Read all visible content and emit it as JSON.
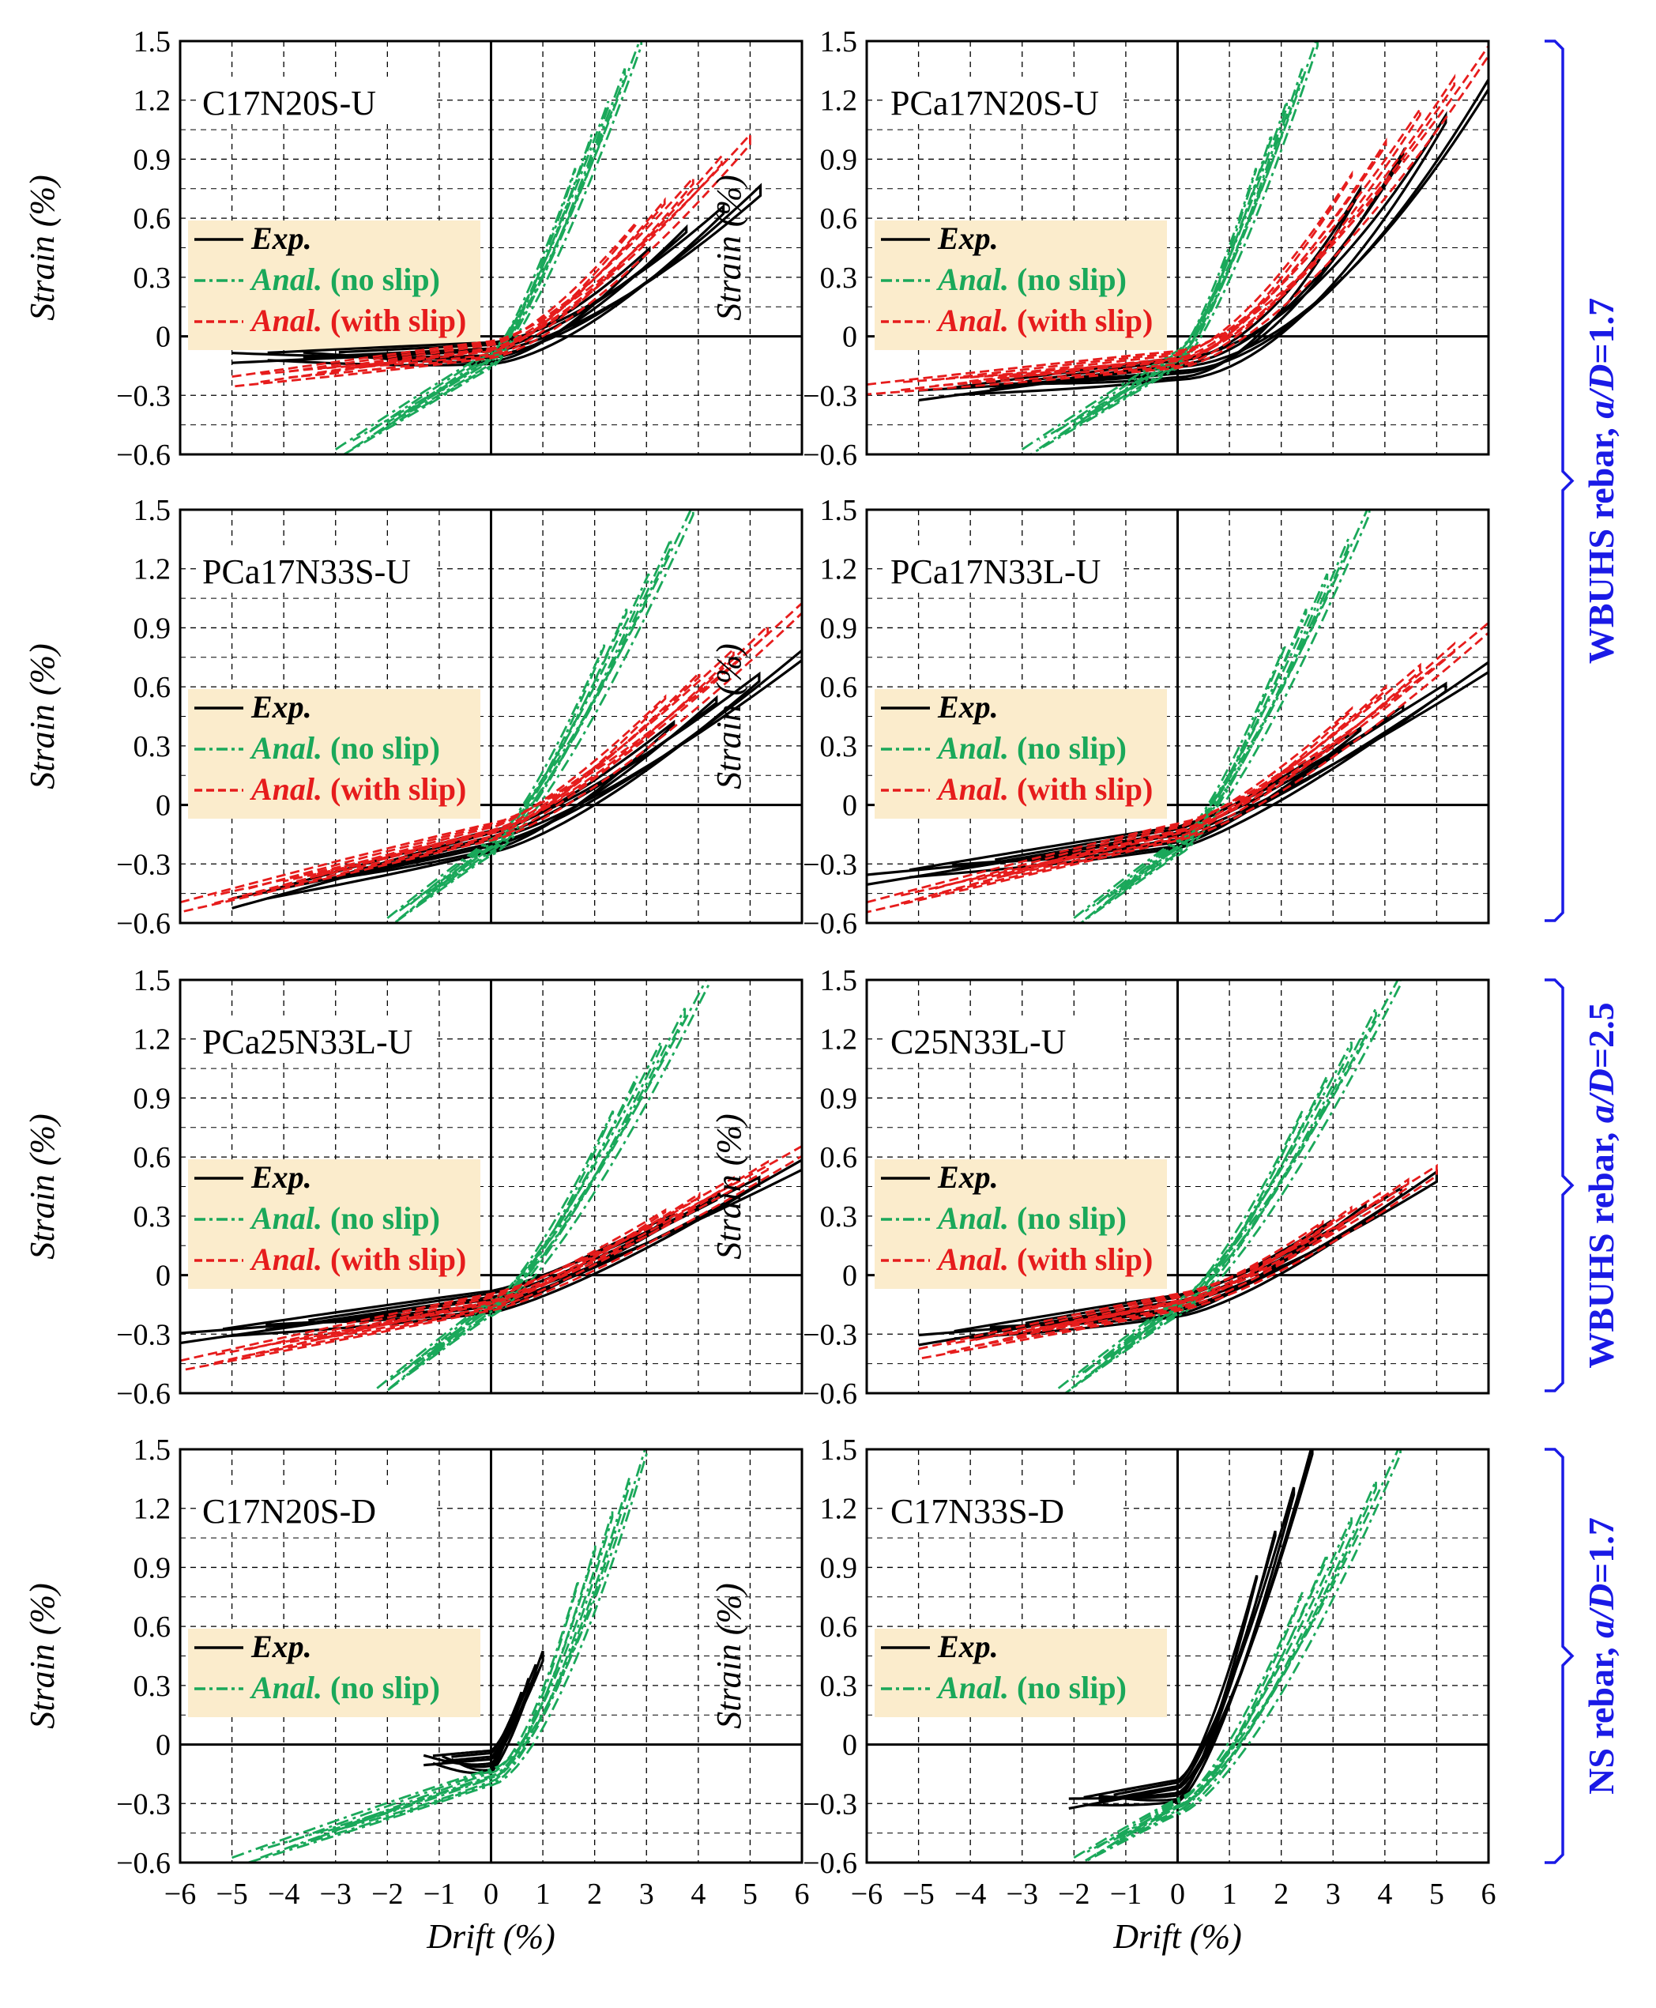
{
  "colors": {
    "exp": "#000000",
    "anal_no_slip": "#1aa85a",
    "anal_with_slip": "#e61c1c",
    "legend_bg": "#fbeccc",
    "group": "#1a1ae6",
    "grid": "#000000"
  },
  "axes": {
    "xlabel": "Drift (%)",
    "ylabel": "Strain (%)",
    "xlim": [
      -6,
      6
    ],
    "ylim": [
      -0.6,
      1.5
    ],
    "xticks": [
      "−6",
      "−5",
      "−4",
      "−3",
      "−2",
      "−1",
      "0",
      "1",
      "2",
      "3",
      "4",
      "5",
      "6"
    ],
    "yticks": [
      "−0.6",
      "−0.3",
      "0",
      "0.3",
      "0.6",
      "0.9",
      "1.2",
      "1.5"
    ],
    "xtick_values": [
      -6,
      -5,
      -4,
      -3,
      -2,
      -1,
      0,
      1,
      2,
      3,
      4,
      5,
      6
    ],
    "ytick_values": [
      -0.6,
      -0.3,
      0,
      0.3,
      0.6,
      0.9,
      1.2,
      1.5
    ]
  },
  "legend_labels": {
    "exp": "Exp.",
    "anal_no_slip_prefix": "Anal.",
    "anal_no_slip_suffix": " (no slip)",
    "anal_with_slip_prefix": "Anal.",
    "anal_with_slip_suffix": " (with slip)"
  },
  "groups": [
    {
      "prefix": "WBUHS rebar, ",
      "italic": "a/D",
      "suffix": "=1.7"
    },
    {
      "prefix": "WBUHS rebar, ",
      "italic": "a/D",
      "suffix": "=2.5"
    },
    {
      "prefix": "NS rebar, ",
      "italic": "a/D",
      "suffix": "=1.7"
    }
  ],
  "chart_data": [
    {
      "type": "line",
      "title": "C17N20S-U",
      "xlabel": "Drift (%)",
      "ylabel": "Strain (%)",
      "xlim": [
        -6,
        6
      ],
      "ylim": [
        -0.6,
        1.5
      ],
      "grid": true,
      "legend": "left",
      "show_slip": true,
      "series": [
        {
          "name": "Exp.",
          "kind": "exp",
          "min_drift": -5,
          "max_drift": 5.2,
          "neg_strain": -0.11,
          "pos_strain": 0.74,
          "zero_strain": -0.05,
          "shape": 1.5
        },
        {
          "name": "Anal. (no slip)",
          "kind": "noslip",
          "min_drift": -3,
          "max_drift": 2.9,
          "neg_strain": -0.6,
          "pos_strain": 1.5,
          "zero_strain": -0.1,
          "shape": 1.3
        },
        {
          "name": "Anal. (with slip)",
          "kind": "slip",
          "min_drift": -5,
          "max_drift": 5,
          "neg_strain": -0.23,
          "pos_strain": 1.0,
          "zero_strain": -0.05,
          "shape": 1.4
        }
      ]
    },
    {
      "type": "line",
      "title": "PCa17N20S-U",
      "xlabel": "Drift (%)",
      "ylabel": "Strain (%)",
      "xlim": [
        -6,
        6
      ],
      "ylim": [
        -0.6,
        1.5
      ],
      "grid": true,
      "legend": "left",
      "show_slip": true,
      "series": [
        {
          "name": "Exp.",
          "kind": "exp",
          "min_drift": -5,
          "max_drift": 6,
          "neg_strain": -0.3,
          "pos_strain": 1.28,
          "zero_strain": -0.13,
          "shape": 1.8
        },
        {
          "name": "Anal. (no slip)",
          "kind": "noslip",
          "min_drift": -3,
          "max_drift": 2.7,
          "neg_strain": -0.6,
          "pos_strain": 1.5,
          "zero_strain": -0.1,
          "shape": 1.3
        },
        {
          "name": "Anal. (with slip)",
          "kind": "slip",
          "min_drift": -6,
          "max_drift": 6,
          "neg_strain": -0.27,
          "pos_strain": 1.45,
          "zero_strain": -0.1,
          "shape": 1.5
        }
      ]
    },
    {
      "type": "line",
      "title": "PCa17N33S-U",
      "xlabel": "Drift (%)",
      "ylabel": "Strain (%)",
      "xlim": [
        -6,
        6
      ],
      "ylim": [
        -0.6,
        1.5
      ],
      "grid": true,
      "legend": "left",
      "show_slip": true,
      "series": [
        {
          "name": "Exp.",
          "kind": "exp",
          "min_drift": -5,
          "max_drift": 6,
          "neg_strain": -0.5,
          "pos_strain": 0.76,
          "zero_strain": -0.15,
          "shape": 1.3
        },
        {
          "name": "Anal. (no slip)",
          "kind": "noslip",
          "min_drift": -2,
          "max_drift": 3.9,
          "neg_strain": -0.6,
          "pos_strain": 1.5,
          "zero_strain": -0.2,
          "shape": 1.3
        },
        {
          "name": "Anal. (with slip)",
          "kind": "slip",
          "min_drift": -6,
          "max_drift": 6,
          "neg_strain": -0.52,
          "pos_strain": 1.0,
          "zero_strain": -0.12,
          "shape": 1.3
        }
      ]
    },
    {
      "type": "line",
      "title": "PCa17N33L-U",
      "xlabel": "Drift (%)",
      "ylabel": "Strain (%)",
      "xlim": [
        -6,
        6
      ],
      "ylim": [
        -0.6,
        1.5
      ],
      "grid": true,
      "legend": "left",
      "show_slip": true,
      "series": [
        {
          "name": "Exp.",
          "kind": "exp",
          "min_drift": -6,
          "max_drift": 6,
          "neg_strain": -0.38,
          "pos_strain": 0.7,
          "zero_strain": -0.13,
          "shape": 1.2
        },
        {
          "name": "Anal. (no slip)",
          "kind": "noslip",
          "min_drift": -2,
          "max_drift": 3.7,
          "neg_strain": -0.6,
          "pos_strain": 1.5,
          "zero_strain": -0.2,
          "shape": 1.3
        },
        {
          "name": "Anal. (with slip)",
          "kind": "slip",
          "min_drift": -6,
          "max_drift": 6,
          "neg_strain": -0.52,
          "pos_strain": 0.9,
          "zero_strain": -0.12,
          "shape": 1.3
        }
      ]
    },
    {
      "type": "line",
      "title": "PCa25N33L-U",
      "xlabel": "Drift (%)",
      "ylabel": "Strain (%)",
      "xlim": [
        -6,
        6
      ],
      "ylim": [
        -0.6,
        1.5
      ],
      "grid": true,
      "legend": "left",
      "show_slip": true,
      "series": [
        {
          "name": "Exp.",
          "kind": "exp",
          "min_drift": -6,
          "max_drift": 6,
          "neg_strain": -0.32,
          "pos_strain": 0.56,
          "zero_strain": -0.1,
          "shape": 1.2
        },
        {
          "name": "Anal. (no slip)",
          "kind": "noslip",
          "min_drift": -2.2,
          "max_drift": 4.2,
          "neg_strain": -0.6,
          "pos_strain": 1.5,
          "zero_strain": -0.15,
          "shape": 1.3
        },
        {
          "name": "Anal. (with slip)",
          "kind": "slip",
          "min_drift": -6,
          "max_drift": 6,
          "neg_strain": -0.46,
          "pos_strain": 0.63,
          "zero_strain": -0.12,
          "shape": 1.2
        }
      ]
    },
    {
      "type": "line",
      "title": "C25N33L-U",
      "xlabel": "Drift (%)",
      "ylabel": "Strain (%)",
      "xlim": [
        -6,
        6
      ],
      "ylim": [
        -0.6,
        1.5
      ],
      "grid": true,
      "legend": "left",
      "show_slip": true,
      "series": [
        {
          "name": "Exp.",
          "kind": "exp",
          "min_drift": -5,
          "max_drift": 5,
          "neg_strain": -0.33,
          "pos_strain": 0.5,
          "zero_strain": -0.12,
          "shape": 1.3
        },
        {
          "name": "Anal. (no slip)",
          "kind": "noslip",
          "min_drift": -2.3,
          "max_drift": 4.3,
          "neg_strain": -0.6,
          "pos_strain": 1.5,
          "zero_strain": -0.15,
          "shape": 1.3
        },
        {
          "name": "Anal. (with slip)",
          "kind": "slip",
          "min_drift": -5,
          "max_drift": 5,
          "neg_strain": -0.4,
          "pos_strain": 0.53,
          "zero_strain": -0.12,
          "shape": 1.3
        }
      ]
    },
    {
      "type": "line",
      "title": "C17N20S-D",
      "xlabel": "Drift (%)",
      "ylabel": "Strain (%)",
      "xlim": [
        -6,
        6
      ],
      "ylim": [
        -0.6,
        1.5
      ],
      "grid": true,
      "legend": "left",
      "show_slip": false,
      "series": [
        {
          "name": "Exp.",
          "kind": "exp",
          "min_drift": -1.3,
          "max_drift": 1,
          "neg_strain": -0.08,
          "pos_strain": 0.45,
          "zero_strain": -0.05,
          "shape": 1.3
        },
        {
          "name": "Anal. (no slip)",
          "kind": "noslip",
          "min_drift": -5,
          "max_drift": 3,
          "neg_strain": -0.6,
          "pos_strain": 1.5,
          "zero_strain": -0.15,
          "shape": 1.6
        }
      ]
    },
    {
      "type": "line",
      "title": "C17N33S-D",
      "xlabel": "Drift (%)",
      "ylabel": "Strain (%)",
      "xlim": [
        -6,
        6
      ],
      "ylim": [
        -0.6,
        1.5
      ],
      "grid": true,
      "legend": "left",
      "show_slip": false,
      "series": [
        {
          "name": "Exp.",
          "kind": "exp",
          "min_drift": -2.1,
          "max_drift": 2.6,
          "neg_strain": -0.3,
          "pos_strain": 1.5,
          "zero_strain": -0.2,
          "shape": 1.4
        },
        {
          "name": "Anal. (no slip)",
          "kind": "noslip",
          "min_drift": -2,
          "max_drift": 4.3,
          "neg_strain": -0.6,
          "pos_strain": 1.5,
          "zero_strain": -0.3,
          "shape": 1.4
        }
      ]
    }
  ]
}
